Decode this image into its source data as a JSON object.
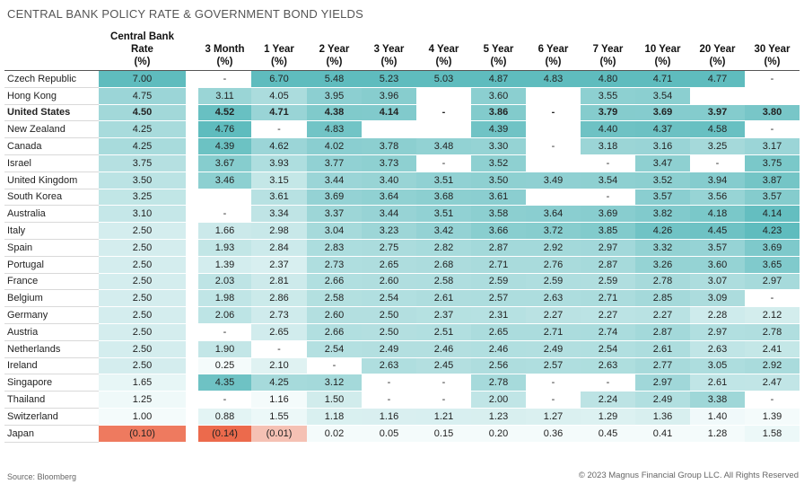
{
  "title": "CENTRAL BANK POLICY RATE & GOVERNMENT BOND YIELDS",
  "source": "Source: Bloomberg",
  "copyright": "© 2023 Magnus Financial Group LLC. All Rights Reserved",
  "colors": {
    "teal_high": "#5fbcbe",
    "teal_low": "#f4fbfb",
    "negative": "#ec6a4c",
    "negative_light": "#f6c9bd"
  },
  "chart_data": {
    "type": "table",
    "columns": [
      "Central Bank\nRate\n(%)",
      "3 Month\n(%)",
      "1 Year\n(%)",
      "2 Year\n(%)",
      "3 Year\n(%)",
      "4 Year\n(%)",
      "5 Year\n(%)",
      "6 Year\n(%)",
      "7 Year\n(%)",
      "10 Year\n(%)",
      "20 Year\n(%)",
      "30 Year\n(%)"
    ],
    "highlighted_row": "United States",
    "rows": [
      {
        "country": "Czech Republic",
        "values": [
          "7.00",
          "-",
          "6.70",
          "5.48",
          "5.23",
          "5.03",
          "4.87",
          "4.83",
          "4.80",
          "4.71",
          "4.77",
          "-"
        ]
      },
      {
        "country": "Hong Kong",
        "values": [
          "4.75",
          "3.11",
          "4.05",
          "3.95",
          "3.96",
          "",
          "3.60",
          "",
          "3.55",
          "3.54",
          "",
          ""
        ]
      },
      {
        "country": "United States",
        "values": [
          "4.50",
          "4.52",
          "4.71",
          "4.38",
          "4.14",
          "-",
          "3.86",
          "-",
          "3.79",
          "3.69",
          "3.97",
          "3.80"
        ]
      },
      {
        "country": "New Zealand",
        "values": [
          "4.25",
          "4.76",
          "-",
          "4.83",
          "",
          "",
          "4.39",
          "",
          "4.40",
          "4.37",
          "4.58",
          "-"
        ]
      },
      {
        "country": "Canada",
        "values": [
          "4.25",
          "4.39",
          "4.62",
          "4.02",
          "3.78",
          "3.48",
          "3.30",
          "-",
          "3.18",
          "3.16",
          "3.25",
          "3.17"
        ]
      },
      {
        "country": "Israel",
        "values": [
          "3.75",
          "3.67",
          "3.93",
          "3.77",
          "3.73",
          "-",
          "3.52",
          "",
          "-",
          "3.47",
          "-",
          "3.75"
        ]
      },
      {
        "country": "United Kingdom",
        "values": [
          "3.50",
          "3.46",
          "3.15",
          "3.44",
          "3.40",
          "3.51",
          "3.50",
          "3.49",
          "3.54",
          "3.52",
          "3.94",
          "3.87"
        ]
      },
      {
        "country": "South Korea",
        "values": [
          "3.25",
          "",
          "3.61",
          "3.69",
          "3.64",
          "3.68",
          "3.61",
          "",
          "-",
          "3.57",
          "3.56",
          "3.57"
        ]
      },
      {
        "country": "Australia",
        "values": [
          "3.10",
          "-",
          "3.34",
          "3.37",
          "3.44",
          "3.51",
          "3.58",
          "3.64",
          "3.69",
          "3.82",
          "4.18",
          "4.14"
        ]
      },
      {
        "country": "Italy",
        "values": [
          "2.50",
          "1.66",
          "2.98",
          "3.04",
          "3.23",
          "3.42",
          "3.66",
          "3.72",
          "3.85",
          "4.26",
          "4.45",
          "4.23"
        ]
      },
      {
        "country": "Spain",
        "values": [
          "2.50",
          "1.93",
          "2.84",
          "2.83",
          "2.75",
          "2.82",
          "2.87",
          "2.92",
          "2.97",
          "3.32",
          "3.57",
          "3.69"
        ]
      },
      {
        "country": "Portugal",
        "values": [
          "2.50",
          "1.39",
          "2.37",
          "2.73",
          "2.65",
          "2.68",
          "2.71",
          "2.76",
          "2.87",
          "3.26",
          "3.60",
          "3.65"
        ]
      },
      {
        "country": "France",
        "values": [
          "2.50",
          "2.03",
          "2.81",
          "2.66",
          "2.60",
          "2.58",
          "2.59",
          "2.59",
          "2.59",
          "2.78",
          "3.07",
          "2.97"
        ]
      },
      {
        "country": "Belgium",
        "values": [
          "2.50",
          "1.98",
          "2.86",
          "2.58",
          "2.54",
          "2.61",
          "2.57",
          "2.63",
          "2.71",
          "2.85",
          "3.09",
          "-"
        ]
      },
      {
        "country": "Germany",
        "values": [
          "2.50",
          "2.06",
          "2.73",
          "2.60",
          "2.50",
          "2.37",
          "2.31",
          "2.27",
          "2.27",
          "2.27",
          "2.28",
          "2.12"
        ]
      },
      {
        "country": "Austria",
        "values": [
          "2.50",
          "-",
          "2.65",
          "2.66",
          "2.50",
          "2.51",
          "2.65",
          "2.71",
          "2.74",
          "2.87",
          "2.97",
          "2.78"
        ]
      },
      {
        "country": "Netherlands",
        "values": [
          "2.50",
          "1.90",
          "-",
          "2.54",
          "2.49",
          "2.46",
          "2.46",
          "2.49",
          "2.54",
          "2.61",
          "2.63",
          "2.41"
        ]
      },
      {
        "country": "Ireland",
        "values": [
          "2.50",
          "0.25",
          "2.10",
          "-",
          "2.63",
          "2.45",
          "2.56",
          "2.57",
          "2.63",
          "2.77",
          "3.05",
          "2.92"
        ]
      },
      {
        "country": "Singapore",
        "values": [
          "1.65",
          "4.35",
          "4.25",
          "3.12",
          "-",
          "-",
          "2.78",
          "-",
          "-",
          "2.97",
          "2.61",
          "2.47"
        ]
      },
      {
        "country": "Thailand",
        "values": [
          "1.25",
          "-",
          "1.16",
          "1.50",
          "-",
          "-",
          "2.00",
          "-",
          "2.24",
          "2.49",
          "3.38",
          "-"
        ]
      },
      {
        "country": "Switzerland",
        "values": [
          "1.00",
          "0.88",
          "1.55",
          "1.18",
          "1.16",
          "1.21",
          "1.23",
          "1.27",
          "1.29",
          "1.36",
          "1.40",
          "1.39"
        ]
      },
      {
        "country": "Japan",
        "values": [
          "(0.10)",
          "(0.14)",
          "(0.01)",
          "0.02",
          "0.05",
          "0.15",
          "0.20",
          "0.36",
          "0.45",
          "0.41",
          "1.28",
          "1.58"
        ]
      }
    ]
  }
}
